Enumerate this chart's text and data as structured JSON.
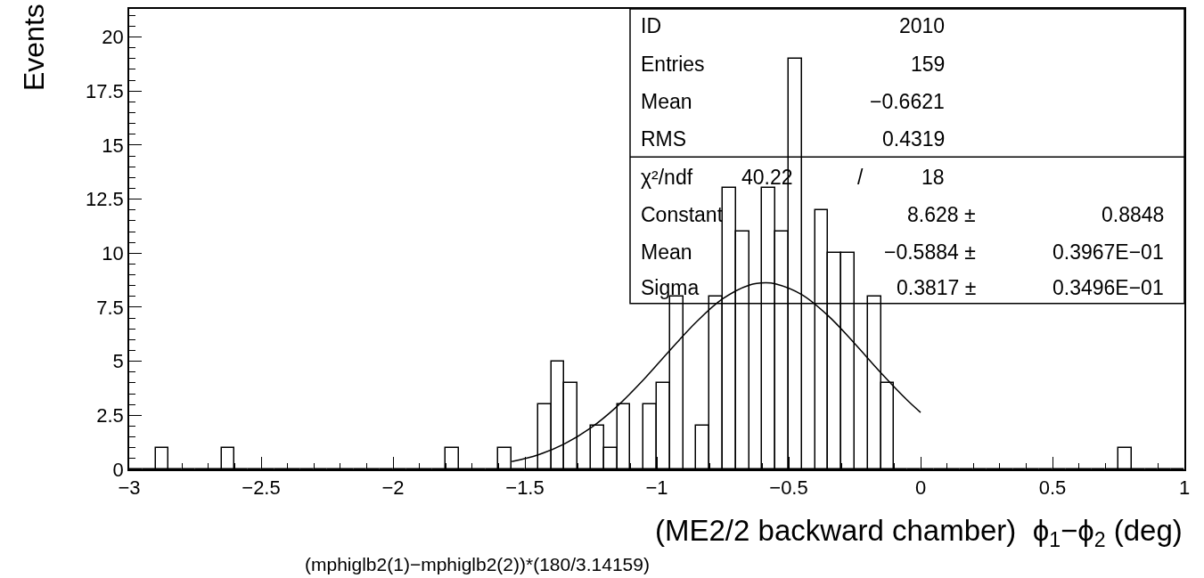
{
  "chart_data": {
    "type": "histogram",
    "xlabel": "(ME2/2 backward chamber)  ϕ$_{1}$−ϕ$_{2}$ (deg)",
    "ylabel": "Events",
    "bins": [
      -3,
      -2.95,
      -2.9,
      -2.85,
      -2.8,
      -2.75,
      -2.7,
      -2.65,
      -2.6,
      -2.55,
      -2.5,
      -2.45,
      -2.4,
      -2.35,
      -2.3,
      -2.25,
      -2.2,
      -2.15,
      -2.1,
      -2.05,
      -2,
      -1.95,
      -1.9,
      -1.85,
      -1.8,
      -1.75,
      -1.7,
      -1.65,
      -1.6,
      -1.55,
      -1.5,
      -1.45,
      -1.4,
      -1.35,
      -1.3,
      -1.25,
      -1.2,
      -1.15,
      -1.1,
      -1.05,
      -1,
      -0.95,
      -0.9,
      -0.85,
      -0.8,
      -0.75,
      -0.7,
      -0.65,
      -0.6,
      -0.55,
      -0.5,
      -0.45,
      -0.4,
      -0.35,
      -0.3,
      -0.25,
      -0.2,
      -0.15,
      -0.1,
      -0.05,
      0,
      0.05,
      0.1,
      0.15,
      0.2,
      0.25,
      0.3,
      0.35,
      0.4,
      0.45,
      0.5,
      0.55,
      0.6,
      0.65,
      0.7,
      0.75,
      0.8,
      0.85,
      0.9,
      0.95,
      1
    ],
    "values": [
      0,
      0,
      1,
      0,
      0,
      0,
      0,
      1,
      0,
      0,
      0,
      0,
      0,
      0,
      0,
      0,
      0,
      0,
      0,
      0,
      0,
      0,
      0,
      0,
      1,
      0,
      0,
      0,
      1,
      0,
      0,
      3,
      5,
      4,
      0,
      2,
      1,
      3,
      0,
      3,
      4,
      8,
      0,
      2,
      8,
      13,
      11,
      0,
      13,
      11,
      19,
      0,
      12,
      10,
      10,
      0,
      8,
      4,
      0,
      0,
      0,
      0,
      0,
      0,
      0,
      0,
      0,
      0,
      0,
      0,
      0,
      0,
      0,
      0,
      0,
      1,
      0,
      0,
      0,
      0
    ],
    "color": "#000000",
    "series": [
      {
        "type": "line",
        "color": "#000000",
        "x": [
          -1.55,
          -1.45,
          -1.35,
          -1.25,
          -1.15,
          -1.05,
          -0.95,
          -0.85,
          -0.75,
          -0.65,
          -0.5884,
          -0.55,
          -0.45,
          -0.35,
          -0.25,
          -0.15,
          -0.05,
          0
        ],
        "values": [
          0.36,
          0.67,
          1.18,
          1.92,
          2.92,
          4.15,
          5.51,
          6.82,
          7.89,
          8.52,
          8.63,
          8.58,
          8.08,
          7.1,
          5.82,
          4.46,
          3.19,
          2.63
        ]
      }
    ],
    "xlim": [
      -3,
      1
    ],
    "xticks": [
      {
        "value": -3,
        "label": "−3"
      },
      {
        "value": -2.5,
        "label": "−2.5"
      },
      {
        "value": -2,
        "label": "−2"
      },
      {
        "value": -1.5,
        "label": "−1.5"
      },
      {
        "value": -1,
        "label": "−1"
      },
      {
        "value": -0.5,
        "label": "−0.5"
      },
      0,
      0.5,
      1
    ],
    "ylim": [
      0,
      21.3
    ],
    "yticks": [
      0,
      2.5,
      5,
      7.5,
      10,
      12.5,
      15,
      17.5,
      20
    ],
    "annotations": [
      "ID",
      "2010",
      "Entries",
      "159",
      "Mean",
      "−0.6621",
      "RMS",
      "0.4319",
      "χ²/ndf",
      "40.22",
      "/",
      "18",
      "Constant",
      "8.628 ±",
      "0.8848",
      "Mean",
      "−0.5884 ±",
      "0.3967E−01",
      "Sigma",
      "0.3817 ±",
      "0.3496E−01",
      "(mphiglb2(1)−mphiglb2(2))*(180/3.14159)"
    ]
  }
}
